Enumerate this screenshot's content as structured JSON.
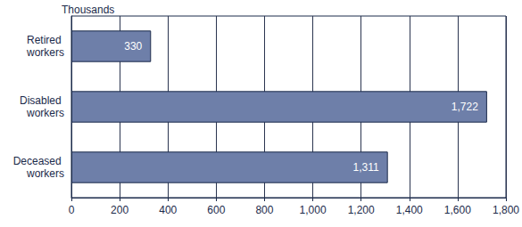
{
  "chart_data": {
    "type": "bar",
    "orientation": "horizontal",
    "xlabel": "Thousands",
    "categories": [
      "Retired workers",
      "Disabled workers",
      "Deceased workers"
    ],
    "values": [
      330,
      1722,
      1311
    ],
    "value_labels": [
      "330",
      "1,722",
      "1,311"
    ],
    "data_labels": true,
    "color": "#6e7fa9",
    "xlim": [
      0,
      1800
    ],
    "xticks": [
      0,
      200,
      400,
      600,
      800,
      {
        "value": 1000,
        "label": "1,000"
      },
      {
        "value": 1200,
        "label": "1,200"
      },
      {
        "value": 1400,
        "label": "1,400"
      },
      {
        "value": 1600,
        "label": "1,600"
      },
      {
        "value": 1800,
        "label": "1,800"
      }
    ],
    "grid": true
  }
}
